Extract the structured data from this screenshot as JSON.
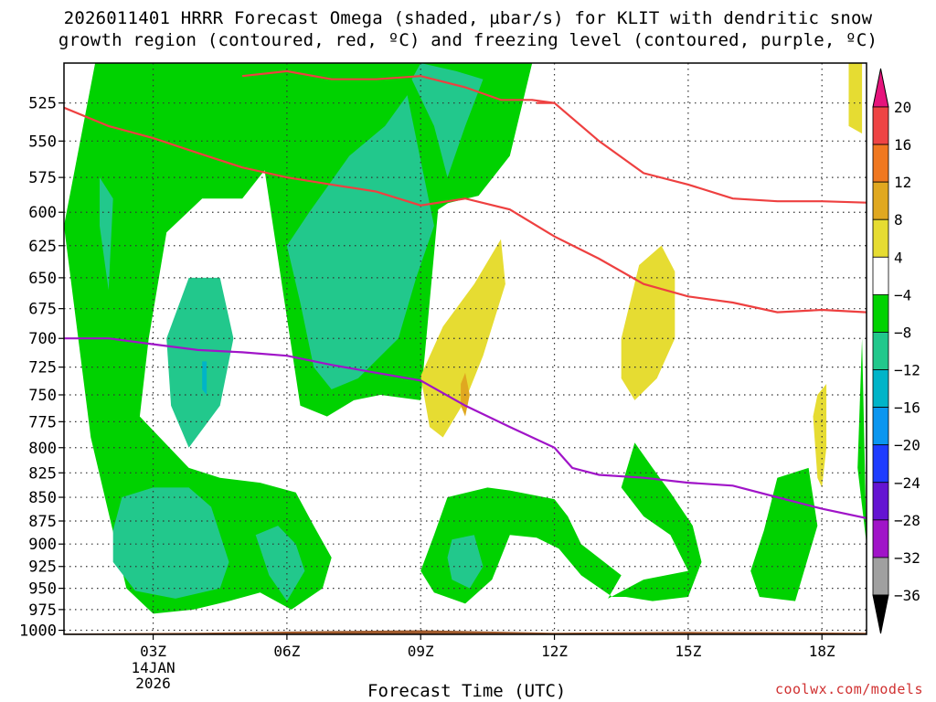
{
  "chart_data": {
    "type": "heatmap",
    "title_line1": "2026011401 HRRR Forecast Omega (shaded, µbar/s) for KLIT with dendritic snow",
    "title_line2": "growth region (contoured, red, ºC) and freezing level (contoured, purple, ºC)",
    "xlabel": "Forecast Time (UTC)",
    "x_ticks": [
      {
        "hour": 3,
        "label": "03Z"
      },
      {
        "hour": 6,
        "label": "06Z"
      },
      {
        "hour": 9,
        "label": "09Z"
      },
      {
        "hour": 12,
        "label": "12Z"
      },
      {
        "hour": 15,
        "label": "15Z"
      },
      {
        "hour": 18,
        "label": "18Z"
      }
    ],
    "x_date_label": [
      "14JAN",
      "2026"
    ],
    "xlim": [
      1,
      19
    ],
    "y_ticks": [
      525,
      550,
      575,
      600,
      625,
      650,
      675,
      700,
      725,
      750,
      775,
      800,
      825,
      850,
      875,
      900,
      925,
      950,
      975,
      1000
    ],
    "ylim": [
      500,
      1005
    ],
    "y_axis": "pressure-log",
    "grid": true,
    "colorbar": {
      "labels": [
        "20",
        "16",
        "12",
        "8",
        "4",
        "−4",
        "−8",
        "−12",
        "−16",
        "−20",
        "−24",
        "−28",
        "−32",
        "−36"
      ],
      "bins": [
        {
          "range": [
            16,
            20
          ],
          "color": "#ee4444"
        },
        {
          "range": [
            12,
            16
          ],
          "color": "#f07820"
        },
        {
          "range": [
            8,
            12
          ],
          "color": "#e0a820"
        },
        {
          "range": [
            4,
            8
          ],
          "color": "#e6dc32"
        },
        {
          "range": [
            -4,
            4
          ],
          "color": "#ffffff"
        },
        {
          "range": [
            -8,
            -4
          ],
          "color": "#00d200"
        },
        {
          "range": [
            -12,
            -8
          ],
          "color": "#22c88c"
        },
        {
          "range": [
            -16,
            -12
          ],
          "color": "#00b4c8"
        },
        {
          "range": [
            -20,
            -16
          ],
          "color": "#0a96f0"
        },
        {
          "range": [
            -24,
            -20
          ],
          "color": "#1e3cff"
        },
        {
          "range": [
            -28,
            -24
          ],
          "color": "#6414d2"
        },
        {
          "range": [
            -32,
            -28
          ],
          "color": "#a014c8"
        },
        {
          "range": [
            -36,
            -32
          ],
          "color": "#a0a0a0"
        }
      ],
      "top_arrow_color": "#e6147c",
      "bottom_arrow_color": "#000000"
    },
    "omega_regions": [
      {
        "level": -4,
        "color": "#00d200",
        "points": [
          [
            1.7,
            500
          ],
          [
            1.0,
            610
          ],
          [
            1.6,
            790
          ],
          [
            2.4,
            950
          ],
          [
            3,
            980
          ],
          [
            3.9,
            975
          ],
          [
            4.7,
            965
          ],
          [
            5.4,
            955
          ],
          [
            6.1,
            975
          ],
          [
            6.8,
            950
          ],
          [
            7.0,
            915
          ],
          [
            6.6,
            880
          ],
          [
            6.2,
            845
          ],
          [
            5.4,
            835
          ],
          [
            4.5,
            830
          ],
          [
            3.8,
            820
          ],
          [
            2.7,
            770
          ],
          [
            2.9,
            700
          ],
          [
            3.3,
            615
          ],
          [
            4.1,
            590
          ],
          [
            5.0,
            590
          ],
          [
            5.5,
            570
          ],
          [
            6.3,
            760
          ],
          [
            6.9,
            770
          ],
          [
            7.5,
            755
          ],
          [
            8.1,
            750
          ],
          [
            9.0,
            755
          ],
          [
            9.4,
            595
          ],
          [
            10.3,
            588
          ],
          [
            11.0,
            560
          ],
          [
            11.5,
            500
          ]
        ]
      },
      {
        "level": -4,
        "color": "#00d200",
        "points": [
          [
            8.2,
            500
          ],
          [
            8.7,
            540
          ],
          [
            9.3,
            600
          ],
          [
            10.0,
            585
          ],
          [
            10.6,
            550
          ],
          [
            11.0,
            500
          ]
        ]
      },
      {
        "level": -4,
        "color": "#00d200",
        "points": [
          [
            9.6,
            850
          ],
          [
            10.5,
            840
          ],
          [
            11.0,
            843
          ],
          [
            12.0,
            852
          ],
          [
            12.3,
            870
          ],
          [
            12.6,
            900
          ],
          [
            13.5,
            935
          ],
          [
            13.2,
            962
          ],
          [
            14.0,
            940
          ],
          [
            15.0,
            930
          ],
          [
            14.6,
            890
          ],
          [
            14.0,
            870
          ],
          [
            13.5,
            840
          ],
          [
            13.8,
            795
          ],
          [
            14.2,
            820
          ],
          [
            14.6,
            845
          ],
          [
            15.1,
            880
          ],
          [
            15.3,
            920
          ],
          [
            15.0,
            960
          ],
          [
            14.2,
            965
          ],
          [
            13.6,
            960
          ],
          [
            13.3,
            960
          ],
          [
            12.6,
            935
          ],
          [
            12.1,
            905
          ],
          [
            11.6,
            893
          ],
          [
            11.0,
            890
          ],
          [
            10.6,
            940
          ],
          [
            10.0,
            968
          ],
          [
            9.3,
            955
          ],
          [
            9.0,
            930
          ],
          [
            9.3,
            890
          ]
        ]
      },
      {
        "level": -4,
        "color": "#00d200",
        "points": [
          [
            16.7,
            885
          ],
          [
            17.0,
            830
          ],
          [
            17.7,
            820
          ],
          [
            17.9,
            880
          ],
          [
            17.4,
            965
          ],
          [
            16.6,
            960
          ],
          [
            16.4,
            930
          ]
        ]
      },
      {
        "level": -4,
        "color": "#00d200",
        "points": [
          [
            18.9,
            700
          ],
          [
            19.0,
            900
          ],
          [
            18.8,
            820
          ]
        ]
      },
      {
        "level": -8,
        "color": "#22c88c",
        "points": [
          [
            1.8,
            575
          ],
          [
            2.1,
            590
          ],
          [
            2.0,
            660
          ],
          [
            1.8,
            610
          ]
        ]
      },
      {
        "level": -8,
        "color": "#22c88c",
        "points": [
          [
            3.8,
            650
          ],
          [
            4.5,
            650
          ],
          [
            4.8,
            700
          ],
          [
            4.5,
            760
          ],
          [
            3.8,
            800
          ],
          [
            3.4,
            760
          ],
          [
            3.3,
            700
          ]
        ]
      },
      {
        "level": -8,
        "color": "#22c88c",
        "points": [
          [
            6.0,
            625
          ],
          [
            6.5,
            600
          ],
          [
            7.4,
            560
          ],
          [
            8.2,
            540
          ],
          [
            8.7,
            520
          ],
          [
            9.3,
            610
          ],
          [
            8.9,
            650
          ],
          [
            8.5,
            700
          ],
          [
            7.6,
            735
          ],
          [
            7.0,
            745
          ],
          [
            6.6,
            725
          ],
          [
            6.3,
            670
          ]
        ]
      },
      {
        "level": -8,
        "color": "#22c88c",
        "points": [
          [
            9.0,
            500
          ],
          [
            9.8,
            505
          ],
          [
            10.4,
            510
          ],
          [
            10.0,
            540
          ],
          [
            9.6,
            575
          ],
          [
            9.3,
            540
          ],
          [
            8.8,
            510
          ]
        ]
      },
      {
        "level": -8,
        "color": "#22c88c",
        "points": [
          [
            2.3,
            850
          ],
          [
            3.0,
            840
          ],
          [
            3.8,
            840
          ],
          [
            4.3,
            860
          ],
          [
            4.7,
            920
          ],
          [
            4.5,
            950
          ],
          [
            3.5,
            962
          ],
          [
            2.6,
            953
          ],
          [
            2.1,
            920
          ],
          [
            2.1,
            885
          ]
        ]
      },
      {
        "level": -8,
        "color": "#22c88c",
        "points": [
          [
            5.3,
            890
          ],
          [
            5.8,
            880
          ],
          [
            6.2,
            900
          ],
          [
            6.4,
            930
          ],
          [
            6.0,
            965
          ],
          [
            5.6,
            935
          ]
        ]
      },
      {
        "level": -8,
        "color": "#22c88c",
        "points": [
          [
            9.7,
            895
          ],
          [
            10.2,
            890
          ],
          [
            10.4,
            925
          ],
          [
            10.1,
            950
          ],
          [
            9.7,
            940
          ],
          [
            9.6,
            915
          ]
        ]
      },
      {
        "level": -12,
        "color": "#00b4c8",
        "points": [
          [
            4.1,
            720
          ],
          [
            4.2,
            720
          ],
          [
            4.2,
            750
          ],
          [
            4.1,
            745
          ]
        ]
      },
      {
        "level": 4,
        "color": "#e6dc32",
        "points": [
          [
            9.0,
            733
          ],
          [
            9.5,
            690
          ],
          [
            10.2,
            655
          ],
          [
            10.8,
            620
          ],
          [
            10.9,
            655
          ],
          [
            10.4,
            715
          ],
          [
            10.0,
            755
          ],
          [
            9.5,
            790
          ],
          [
            9.2,
            780
          ]
        ]
      },
      {
        "level": 4,
        "color": "#e6dc32",
        "points": [
          [
            13.5,
            700
          ],
          [
            13.9,
            640
          ],
          [
            14.4,
            625
          ],
          [
            14.7,
            645
          ],
          [
            14.7,
            700
          ],
          [
            14.3,
            735
          ],
          [
            13.8,
            755
          ],
          [
            13.5,
            735
          ]
        ]
      },
      {
        "level": 4,
        "color": "#e6dc32",
        "points": [
          [
            17.8,
            770
          ],
          [
            17.9,
            750
          ],
          [
            18.1,
            740
          ],
          [
            18.1,
            800
          ],
          [
            18.0,
            840
          ],
          [
            17.9,
            830
          ]
        ]
      },
      {
        "level": 4,
        "color": "#e6dc32",
        "points": [
          [
            18.6,
            500
          ],
          [
            18.9,
            500
          ],
          [
            18.9,
            545
          ],
          [
            18.6,
            540
          ]
        ]
      },
      {
        "level": 8,
        "color": "#e0a820",
        "points": [
          [
            9.9,
            740
          ],
          [
            10.0,
            730
          ],
          [
            10.1,
            750
          ],
          [
            10.0,
            770
          ],
          [
            9.9,
            760
          ]
        ]
      }
    ],
    "dgz_contours_red": [
      {
        "x": [
          5.0,
          6.0,
          7.0,
          8.0,
          9.0,
          10.0,
          10.8,
          11.5,
          12.0
        ],
        "y": [
          508,
          505,
          510,
          510,
          508,
          515,
          523,
          523,
          525
        ]
      },
      {
        "x": [
          1.0,
          2.0,
          3.0,
          4.0,
          5.0,
          6.0,
          7.0,
          8.0,
          9.0,
          10.0,
          11.0,
          12.0,
          13.0,
          14.0,
          15.0,
          16.0,
          17.0,
          18.0,
          19.0
        ],
        "y": [
          528,
          540,
          548,
          558,
          568,
          575,
          580,
          585,
          595,
          590,
          598,
          618,
          635,
          655,
          665,
          670,
          678,
          676,
          678
        ]
      },
      {
        "x": [
          11.6,
          12.0,
          13.0,
          14.0,
          15.0,
          16.0,
          17.0,
          18.0,
          19.0
        ],
        "y": [
          525,
          525,
          550,
          572,
          580,
          590,
          592,
          592,
          593
        ]
      }
    ],
    "freezing_level_purple": {
      "x": [
        1.0,
        2.0,
        3.0,
        4.0,
        5.0,
        6.0,
        7.0,
        8.0,
        9.0,
        10.0,
        11.0,
        12.0,
        12.4,
        13.0,
        14.0,
        15.0,
        16.0,
        17.0,
        18.0,
        19.0
      ],
      "y": [
        700,
        700,
        705,
        710,
        712,
        715,
        723,
        730,
        737,
        760,
        780,
        800,
        820,
        827,
        830,
        835,
        838,
        850,
        862,
        872
      ]
    },
    "surface_terrain": {
      "color": "#a05a2c",
      "x": [
        1,
        4,
        7,
        9,
        12,
        15,
        19
      ],
      "y": [
        1004,
        1003,
        1001,
        1000,
        1003,
        1002,
        1003
      ]
    }
  },
  "credit": "coolwx.com/models"
}
